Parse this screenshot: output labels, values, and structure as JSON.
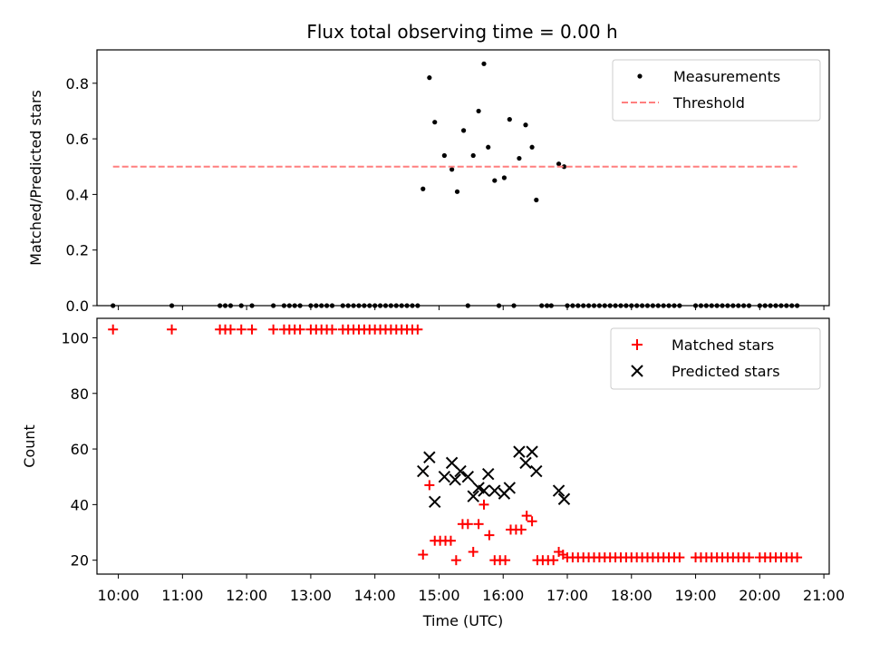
{
  "chart_data": [
    {
      "type": "scatter",
      "title": "Flux total observing time = 0.00 h",
      "xlabel": "",
      "ylabel": "Matched/Predicted stars",
      "xlim": [
        "09:40",
        "21:05"
      ],
      "ylim": [
        0,
        0.92
      ],
      "yticks": [
        0,
        0.2,
        0.4,
        0.6,
        0.8
      ],
      "ytick_labels": [
        "0.0",
        "0.2",
        "0.4",
        "0.6",
        "0.8"
      ],
      "legend_placement": "top-right",
      "series": [
        {
          "name": "Measurements",
          "marker": "dot",
          "color": "#000000",
          "points": [
            [
              "09:55",
              0
            ],
            [
              "10:50",
              0
            ],
            [
              "11:35",
              0
            ],
            [
              "11:40",
              0
            ],
            [
              "11:45",
              0
            ],
            [
              "11:55",
              0
            ],
            [
              "12:05",
              0
            ],
            [
              "12:25",
              0
            ],
            [
              "12:35",
              0
            ],
            [
              "12:40",
              0
            ],
            [
              "12:45",
              0
            ],
            [
              "12:50",
              0
            ],
            [
              "13:00",
              0
            ],
            [
              "13:05",
              0
            ],
            [
              "13:10",
              0
            ],
            [
              "13:15",
              0
            ],
            [
              "13:20",
              0
            ],
            [
              "13:30",
              0
            ],
            [
              "13:35",
              0
            ],
            [
              "13:40",
              0
            ],
            [
              "13:45",
              0
            ],
            [
              "13:50",
              0
            ],
            [
              "13:55",
              0
            ],
            [
              "14:00",
              0
            ],
            [
              "14:05",
              0
            ],
            [
              "14:10",
              0
            ],
            [
              "14:15",
              0
            ],
            [
              "14:20",
              0
            ],
            [
              "14:25",
              0
            ],
            [
              "14:30",
              0
            ],
            [
              "14:35",
              0
            ],
            [
              "14:40",
              0
            ],
            [
              "14:45",
              0.42
            ],
            [
              "14:51",
              0.82
            ],
            [
              "14:56",
              0.66
            ],
            [
              "15:05",
              0.54
            ],
            [
              "15:12",
              0.49
            ],
            [
              "15:17",
              0.41
            ],
            [
              "15:23",
              0.63
            ],
            [
              "15:27",
              0
            ],
            [
              "15:32",
              0.54
            ],
            [
              "15:37",
              0.7
            ],
            [
              "15:42",
              0.87
            ],
            [
              "15:46",
              0.57
            ],
            [
              "15:52",
              0.45
            ],
            [
              "15:56",
              0
            ],
            [
              "16:01",
              0.46
            ],
            [
              "16:06",
              0.67
            ],
            [
              "16:10",
              0
            ],
            [
              "16:15",
              0.53
            ],
            [
              "16:21",
              0.65
            ],
            [
              "16:27",
              0.57
            ],
            [
              "16:31",
              0.38
            ],
            [
              "16:36",
              0
            ],
            [
              "16:41",
              0
            ],
            [
              "16:45",
              0
            ],
            [
              "16:52",
              0.51
            ],
            [
              "16:57",
              0.5
            ],
            [
              "17:00",
              0
            ],
            [
              "17:05",
              0
            ],
            [
              "17:10",
              0
            ],
            [
              "17:15",
              0
            ],
            [
              "17:20",
              0
            ],
            [
              "17:25",
              0
            ],
            [
              "17:30",
              0
            ],
            [
              "17:35",
              0
            ],
            [
              "17:40",
              0
            ],
            [
              "17:45",
              0
            ],
            [
              "17:50",
              0
            ],
            [
              "17:55",
              0
            ],
            [
              "18:00",
              0
            ],
            [
              "18:05",
              0
            ],
            [
              "18:10",
              0
            ],
            [
              "18:15",
              0
            ],
            [
              "18:20",
              0
            ],
            [
              "18:25",
              0
            ],
            [
              "18:30",
              0
            ],
            [
              "18:35",
              0
            ],
            [
              "18:40",
              0
            ],
            [
              "18:45",
              0
            ],
            [
              "19:00",
              0
            ],
            [
              "19:05",
              0
            ],
            [
              "19:10",
              0
            ],
            [
              "19:15",
              0
            ],
            [
              "19:20",
              0
            ],
            [
              "19:25",
              0
            ],
            [
              "19:30",
              0
            ],
            [
              "19:35",
              0
            ],
            [
              "19:40",
              0
            ],
            [
              "19:45",
              0
            ],
            [
              "19:50",
              0
            ],
            [
              "20:00",
              0
            ],
            [
              "20:05",
              0
            ],
            [
              "20:10",
              0
            ],
            [
              "20:15",
              0
            ],
            [
              "20:20",
              0
            ],
            [
              "20:25",
              0
            ],
            [
              "20:30",
              0
            ],
            [
              "20:35",
              0
            ]
          ]
        },
        {
          "name": "Threshold",
          "marker": "dashed-line",
          "color": "#ff7f7f",
          "points": [
            [
              "09:55",
              0.5
            ],
            [
              "20:35",
              0.5
            ]
          ]
        }
      ]
    },
    {
      "type": "scatter",
      "title": "",
      "xlabel": "Time (UTC)",
      "ylabel": "Count",
      "xlim": [
        "09:40",
        "21:05"
      ],
      "ylim": [
        15,
        107
      ],
      "yticks": [
        20,
        40,
        60,
        80,
        100
      ],
      "ytick_labels": [
        "20",
        "40",
        "60",
        "80",
        "100"
      ],
      "xticks": [
        "10:00",
        "11:00",
        "12:00",
        "13:00",
        "14:00",
        "15:00",
        "16:00",
        "17:00",
        "18:00",
        "19:00",
        "20:00",
        "21:00"
      ],
      "legend_placement": "top-right",
      "series": [
        {
          "name": "Matched stars",
          "marker": "plus",
          "color": "#ff0000",
          "points": [
            [
              "09:55",
              103
            ],
            [
              "10:50",
              103
            ],
            [
              "11:35",
              103
            ],
            [
              "11:40",
              103
            ],
            [
              "11:45",
              103
            ],
            [
              "11:55",
              103
            ],
            [
              "12:05",
              103
            ],
            [
              "12:25",
              103
            ],
            [
              "12:35",
              103
            ],
            [
              "12:40",
              103
            ],
            [
              "12:45",
              103
            ],
            [
              "12:50",
              103
            ],
            [
              "13:00",
              103
            ],
            [
              "13:05",
              103
            ],
            [
              "13:10",
              103
            ],
            [
              "13:15",
              103
            ],
            [
              "13:20",
              103
            ],
            [
              "13:30",
              103
            ],
            [
              "13:35",
              103
            ],
            [
              "13:40",
              103
            ],
            [
              "13:45",
              103
            ],
            [
              "13:50",
              103
            ],
            [
              "13:55",
              103
            ],
            [
              "14:00",
              103
            ],
            [
              "14:05",
              103
            ],
            [
              "14:10",
              103
            ],
            [
              "14:15",
              103
            ],
            [
              "14:20",
              103
            ],
            [
              "14:25",
              103
            ],
            [
              "14:30",
              103
            ],
            [
              "14:35",
              103
            ],
            [
              "14:40",
              103
            ],
            [
              "14:45",
              22
            ],
            [
              "14:51",
              47
            ],
            [
              "14:56",
              27
            ],
            [
              "15:01",
              27
            ],
            [
              "15:06",
              27
            ],
            [
              "15:11",
              27
            ],
            [
              "15:16",
              20
            ],
            [
              "15:22",
              33
            ],
            [
              "15:27",
              33
            ],
            [
              "15:32",
              23
            ],
            [
              "15:37",
              33
            ],
            [
              "15:42",
              40
            ],
            [
              "15:47",
              29
            ],
            [
              "15:52",
              20
            ],
            [
              "15:57",
              20
            ],
            [
              "16:02",
              20
            ],
            [
              "16:07",
              31
            ],
            [
              "16:12",
              31
            ],
            [
              "16:17",
              31
            ],
            [
              "16:22",
              36
            ],
            [
              "16:27",
              34
            ],
            [
              "16:32",
              20
            ],
            [
              "16:37",
              20
            ],
            [
              "16:42",
              20
            ],
            [
              "16:47",
              20
            ],
            [
              "16:52",
              23
            ],
            [
              "16:56",
              22
            ],
            [
              "17:00",
              21
            ],
            [
              "17:05",
              21
            ],
            [
              "17:10",
              21
            ],
            [
              "17:15",
              21
            ],
            [
              "17:20",
              21
            ],
            [
              "17:25",
              21
            ],
            [
              "17:30",
              21
            ],
            [
              "17:35",
              21
            ],
            [
              "17:40",
              21
            ],
            [
              "17:45",
              21
            ],
            [
              "17:50",
              21
            ],
            [
              "17:55",
              21
            ],
            [
              "18:00",
              21
            ],
            [
              "18:05",
              21
            ],
            [
              "18:10",
              21
            ],
            [
              "18:15",
              21
            ],
            [
              "18:20",
              21
            ],
            [
              "18:25",
              21
            ],
            [
              "18:30",
              21
            ],
            [
              "18:35",
              21
            ],
            [
              "18:40",
              21
            ],
            [
              "18:45",
              21
            ],
            [
              "19:00",
              21
            ],
            [
              "19:05",
              21
            ],
            [
              "19:10",
              21
            ],
            [
              "19:15",
              21
            ],
            [
              "19:20",
              21
            ],
            [
              "19:25",
              21
            ],
            [
              "19:30",
              21
            ],
            [
              "19:35",
              21
            ],
            [
              "19:40",
              21
            ],
            [
              "19:45",
              21
            ],
            [
              "19:50",
              21
            ],
            [
              "20:00",
              21
            ],
            [
              "20:05",
              21
            ],
            [
              "20:10",
              21
            ],
            [
              "20:15",
              21
            ],
            [
              "20:20",
              21
            ],
            [
              "20:25",
              21
            ],
            [
              "20:30",
              21
            ],
            [
              "20:35",
              21
            ]
          ]
        },
        {
          "name": "Predicted stars",
          "marker": "x",
          "color": "#000000",
          "points": [
            [
              "14:45",
              52
            ],
            [
              "14:51",
              57
            ],
            [
              "14:56",
              41
            ],
            [
              "15:05",
              50
            ],
            [
              "15:12",
              55
            ],
            [
              "15:15",
              49
            ],
            [
              "15:20",
              52
            ],
            [
              "15:27",
              50
            ],
            [
              "15:32",
              43
            ],
            [
              "15:37",
              46
            ],
            [
              "15:42",
              45
            ],
            [
              "15:46",
              51
            ],
            [
              "15:52",
              45
            ],
            [
              "16:01",
              44
            ],
            [
              "16:06",
              46
            ],
            [
              "16:15",
              59
            ],
            [
              "16:21",
              55
            ],
            [
              "16:27",
              59
            ],
            [
              "16:31",
              52
            ],
            [
              "16:52",
              45
            ],
            [
              "16:57",
              42
            ]
          ]
        }
      ]
    }
  ]
}
